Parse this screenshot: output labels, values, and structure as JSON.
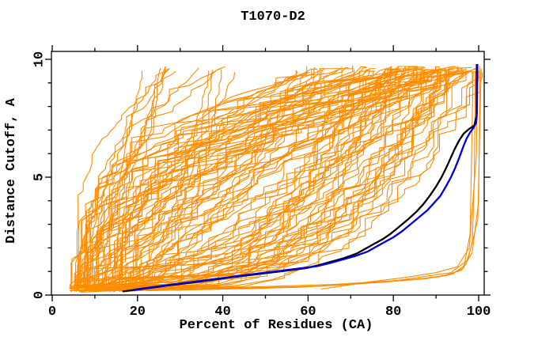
{
  "figure": {
    "background": "#ffffff",
    "frame_color": "#000000"
  },
  "chart_data": {
    "type": "line",
    "title": "T1070-D2",
    "xlabel": "Percent of Residues (CA)",
    "ylabel": "Distance Cutoff, A",
    "xlim": [
      0,
      101.5
    ],
    "ylim": [
      0,
      10.35
    ],
    "grid": false,
    "legend": "none",
    "x_major_ticks": [
      0,
      20,
      40,
      60,
      80,
      100
    ],
    "x_minor_ticks": [
      10,
      30,
      50,
      70,
      90
    ],
    "y_major_ticks": [
      0,
      5,
      10
    ],
    "y_minor_ticks": [
      1,
      2,
      3,
      4,
      6,
      7,
      8,
      9
    ],
    "series": [
      {
        "name": "highlight-black-model",
        "color": "#000000",
        "width": 2.3,
        "points": [
          [
            16.5,
            0.15
          ],
          [
            21.5,
            0.27
          ],
          [
            26.5,
            0.39
          ],
          [
            31.5,
            0.5
          ],
          [
            36.5,
            0.62
          ],
          [
            41.5,
            0.74
          ],
          [
            46.5,
            0.85
          ],
          [
            51.5,
            0.96
          ],
          [
            56.5,
            1.07
          ],
          [
            59.5,
            1.14
          ],
          [
            62.5,
            1.27
          ],
          [
            65.5,
            1.42
          ],
          [
            68.5,
            1.57
          ],
          [
            71.5,
            1.77
          ],
          [
            73.5,
            1.97
          ],
          [
            75.5,
            2.17
          ],
          [
            77.5,
            2.37
          ],
          [
            79.5,
            2.62
          ],
          [
            81.5,
            2.92
          ],
          [
            83.5,
            3.22
          ],
          [
            85.5,
            3.55
          ],
          [
            87,
            3.85
          ],
          [
            88.5,
            4.2
          ],
          [
            90,
            4.6
          ],
          [
            91.3,
            5.0
          ],
          [
            92.4,
            5.4
          ],
          [
            93.4,
            5.8
          ],
          [
            94.4,
            6.2
          ],
          [
            95.4,
            6.55
          ],
          [
            96.5,
            6.85
          ],
          [
            97.8,
            7.05
          ],
          [
            99,
            7.2
          ],
          [
            99.5,
            7.6
          ],
          [
            99.55,
            9.8
          ]
        ]
      },
      {
        "name": "highlight-blue-model",
        "color": "#0000dd",
        "width": 2.3,
        "points": [
          [
            19,
            0.22
          ],
          [
            24,
            0.35
          ],
          [
            29,
            0.47
          ],
          [
            34,
            0.58
          ],
          [
            39,
            0.7
          ],
          [
            44,
            0.82
          ],
          [
            49,
            0.93
          ],
          [
            54,
            1.04
          ],
          [
            59,
            1.15
          ],
          [
            62,
            1.22
          ],
          [
            65,
            1.35
          ],
          [
            68,
            1.5
          ],
          [
            71,
            1.65
          ],
          [
            74,
            1.85
          ],
          [
            76,
            2.05
          ],
          [
            78,
            2.25
          ],
          [
            80,
            2.45
          ],
          [
            82,
            2.7
          ],
          [
            84,
            3.0
          ],
          [
            86,
            3.3
          ],
          [
            88,
            3.6
          ],
          [
            89.5,
            3.9
          ],
          [
            91,
            4.2
          ],
          [
            92.3,
            4.6
          ],
          [
            93.5,
            5.0
          ],
          [
            94.5,
            5.4
          ],
          [
            95.5,
            5.85
          ],
          [
            96.4,
            6.3
          ],
          [
            97.2,
            6.65
          ],
          [
            98,
            6.9
          ],
          [
            98.8,
            7.1
          ],
          [
            99.4,
            7.3
          ],
          [
            99.6,
            7.7
          ],
          [
            99.7,
            9.8
          ]
        ]
      }
    ],
    "orange_ensemble": {
      "description": "dense fan of server-model GDT curves",
      "color": "#ff8c00",
      "count": 115,
      "seed": 20211,
      "start_x_range": [
        4,
        19
      ],
      "start_y_range": [
        0.12,
        0.38
      ],
      "left_fraction": 0.18,
      "end_x_left_range": [
        14,
        45
      ],
      "end_x_right_range": [
        55,
        101
      ],
      "top_y_range": [
        9.45,
        9.72
      ],
      "jitter": 0.05
    },
    "low_outliers": {
      "color": "#ff8c00",
      "lines": [
        [
          [
            26,
            0.2
          ],
          [
            58,
            0.33
          ],
          [
            74,
            0.5
          ],
          [
            88,
            0.7
          ],
          [
            94,
            0.9
          ],
          [
            97,
            1.3
          ],
          [
            98.5,
            2.2
          ],
          [
            99,
            5.0
          ],
          [
            99.2,
            9.5
          ]
        ],
        [
          [
            30,
            0.24
          ],
          [
            63,
            0.38
          ],
          [
            78,
            0.55
          ],
          [
            91,
            0.78
          ],
          [
            96,
            1.05
          ],
          [
            98.5,
            1.8
          ],
          [
            100,
            4.0
          ],
          [
            100.3,
            9.55
          ]
        ],
        [
          [
            22,
            0.18
          ],
          [
            52,
            0.3
          ],
          [
            70,
            0.45
          ],
          [
            85,
            0.65
          ],
          [
            93,
            0.85
          ],
          [
            96.5,
            1.15
          ],
          [
            98,
            2.6
          ],
          [
            98.7,
            9.45
          ]
        ],
        [
          [
            35,
            0.28
          ],
          [
            66,
            0.45
          ],
          [
            81,
            0.62
          ],
          [
            93.5,
            0.95
          ],
          [
            97.5,
            1.5
          ],
          [
            99.8,
            3.2
          ],
          [
            100.6,
            9.6
          ]
        ],
        [
          [
            63,
            0.25
          ],
          [
            74,
            0.55
          ],
          [
            83,
            0.75
          ],
          [
            90,
            0.95
          ],
          [
            95,
            1.2
          ],
          [
            97.8,
            2.0
          ],
          [
            99.5,
            6.0
          ],
          [
            99.6,
            9.5
          ]
        ]
      ]
    }
  }
}
